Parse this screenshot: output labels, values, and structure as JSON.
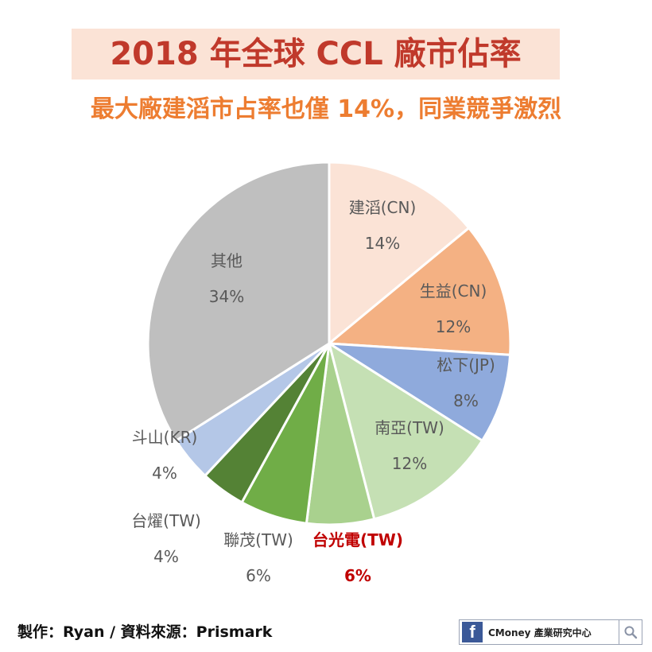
{
  "chart_data": {
    "type": "pie",
    "title": "2018 年全球 CCL 廠市佔率",
    "subtitle": "最大廠建滔市占率也僅 14%，同業競爭激烈",
    "slices": [
      {
        "label": "建滔(CN)",
        "value": 14,
        "value_label": "14%",
        "color": "#fbe3d6",
        "label_color": "#595959"
      },
      {
        "label": "生益(CN)",
        "value": 12,
        "value_label": "12%",
        "color": "#f4b183",
        "label_color": "#595959"
      },
      {
        "label": "松下(JP)",
        "value": 8,
        "value_label": "8%",
        "color": "#8faadc",
        "label_color": "#595959"
      },
      {
        "label": "南亞(TW)",
        "value": 12,
        "value_label": "12%",
        "color": "#c5e0b4",
        "label_color": "#595959"
      },
      {
        "label": "台光電(TW)",
        "value": 6,
        "value_label": "6%",
        "color": "#a9d18e",
        "label_color": "#c00000"
      },
      {
        "label": "聯茂(TW)",
        "value": 6,
        "value_label": "6%",
        "color": "#70ad47",
        "label_color": "#595959"
      },
      {
        "label": "台燿(TW)",
        "value": 4,
        "value_label": "4%",
        "color": "#548235",
        "label_color": "#595959"
      },
      {
        "label": "斗山(KR)",
        "value": 4,
        "value_label": "4%",
        "color": "#b4c7e7",
        "label_color": "#595959"
      },
      {
        "label": "其他",
        "value": 34,
        "value_label": "34%",
        "color": "#bfbfbf",
        "label_color": "#595959"
      }
    ],
    "legend": "none"
  },
  "footer": {
    "credit": "製作：Ryan / 資料來源：Prismark"
  },
  "brand": {
    "icon": "facebook-icon",
    "text": "CMoney 產業研究中心",
    "search_icon": "search-icon"
  }
}
